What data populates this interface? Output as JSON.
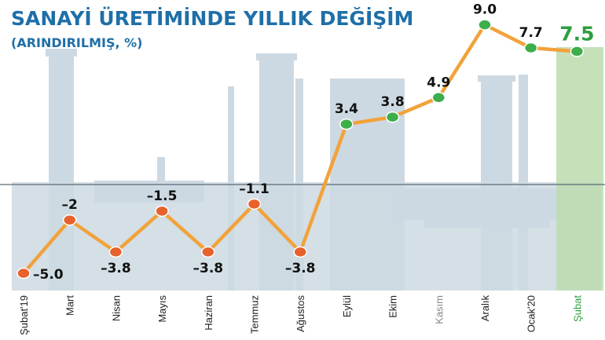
{
  "title": "SANAYİ ÜRETİMİNDE YILLIK DEĞİŞİM",
  "subtitle": "(ARINDIRILMIŞ, %)",
  "chart_data": {
    "type": "line",
    "title": "SANAYİ ÜRETİMİNDE YILLIK DEĞİŞİM",
    "subtitle": "(ARINDIRILMIŞ, %)",
    "categories": [
      "Şubat'19",
      "Mart",
      "Nisan",
      "Mayıs",
      "Haziran",
      "Temmuz",
      "Ağustos",
      "Eylül",
      "Ekim",
      "Kasım",
      "Aralık",
      "Ocak'20",
      "Şubat"
    ],
    "values": [
      -5.0,
      -2,
      -3.8,
      -1.5,
      -3.8,
      -1.1,
      -3.8,
      3.4,
      3.8,
      4.9,
      9.0,
      7.7,
      7.5
    ],
    "labels": [
      "–5.0",
      "–2",
      "–3.8",
      "–1.5",
      "–3.8",
      "–1.1",
      "–3.8",
      "3.4",
      "3.8",
      "4.9",
      "9.0",
      "7.7",
      "7.5"
    ],
    "ylim": [
      -6,
      10
    ],
    "highlight_last": true,
    "grid": false,
    "colors": {
      "line": "#f2a23a",
      "negative_point": "#e8612c",
      "positive_point": "#3dae4a",
      "highlight_band": "#bcdcae",
      "highlight_text": "#2e9e3e",
      "title": "#1f6fa8",
      "background_silhouette": "#cdd9e2"
    },
    "tick_colors": [
      "default",
      "default",
      "default",
      "default",
      "default",
      "default",
      "default",
      "default",
      "default",
      "gray",
      "default",
      "default",
      "green"
    ]
  }
}
